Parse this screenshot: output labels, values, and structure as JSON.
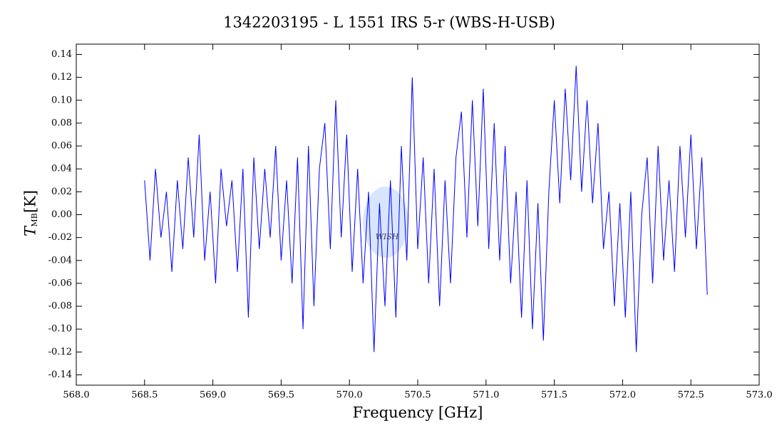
{
  "chart_data": {
    "type": "line",
    "title": "1342203195 - L 1551 IRS 5-r (WBS-H-USB)",
    "x_label": "Frequency [GHz]",
    "y_label": "T",
    "y_label_sub": "MB",
    "y_label_unit": "[K]",
    "watermark": "WISH",
    "xlim": [
      568,
      573
    ],
    "ylim": [
      -0.149,
      0.149
    ],
    "xticks": [
      {
        "value": 568,
        "label": "568.0"
      },
      568.5,
      {
        "value": 569,
        "label": "569.0"
      },
      569.5,
      {
        "value": 570,
        "label": "570.0"
      },
      570.5,
      {
        "value": 571,
        "label": "571.0"
      },
      571.5,
      {
        "value": 572,
        "label": "572.0"
      },
      572.5,
      {
        "value": 573,
        "label": "573.0"
      }
    ],
    "yticks": [
      -0.14,
      -0.12,
      {
        "value": -0.1,
        "label": "-0.10"
      },
      -0.08,
      -0.06,
      -0.04,
      -0.02,
      {
        "value": 0,
        "label": "0.00"
      },
      0.02,
      0.04,
      0.06,
      0.08,
      {
        "value": 0.1,
        "label": "0.10"
      },
      0.12,
      0.14
    ],
    "x": [
      568.5,
      568.54,
      568.58,
      568.62,
      568.66,
      568.7,
      568.74,
      568.78,
      568.82,
      568.86,
      568.9,
      568.94,
      568.98,
      569.02,
      569.06,
      569.1,
      569.14,
      569.18,
      569.22,
      569.26,
      569.3,
      569.34,
      569.38,
      569.42,
      569.46,
      569.5,
      569.54,
      569.58,
      569.62,
      569.66,
      569.7,
      569.74,
      569.78,
      569.82,
      569.86,
      569.9,
      569.94,
      569.98,
      570.02,
      570.06,
      570.1,
      570.14,
      570.18,
      570.22,
      570.26,
      570.3,
      570.34,
      570.38,
      570.42,
      570.46,
      570.5,
      570.54,
      570.58,
      570.62,
      570.66,
      570.7,
      570.74,
      570.78,
      570.82,
      570.86,
      570.9,
      570.94,
      570.98,
      571.02,
      571.06,
      571.1,
      571.14,
      571.18,
      571.22,
      571.26,
      571.3,
      571.34,
      571.38,
      571.42,
      571.46,
      571.5,
      571.54,
      571.58,
      571.62,
      571.66,
      571.7,
      571.74,
      571.78,
      571.82,
      571.86,
      571.9,
      571.94,
      571.98,
      572.02,
      572.06,
      572.1,
      572.14,
      572.18,
      572.22,
      572.26,
      572.3,
      572.34,
      572.38,
      572.42,
      572.46,
      572.5,
      572.54,
      572.58,
      572.62
    ],
    "series": [
      {
        "color": "#0000ff",
        "values": [
          0.03,
          -0.04,
          0.04,
          -0.02,
          0.02,
          -0.05,
          0.03,
          -0.03,
          0.05,
          -0.02,
          0.07,
          -0.04,
          0.02,
          -0.06,
          0.04,
          -0.01,
          0.03,
          -0.05,
          0.04,
          -0.09,
          0.05,
          -0.03,
          0.04,
          -0.02,
          0.06,
          -0.04,
          0.03,
          -0.06,
          0.05,
          -0.1,
          0.06,
          -0.08,
          0.04,
          0.08,
          -0.03,
          0.1,
          -0.02,
          0.07,
          -0.05,
          0.04,
          -0.06,
          0.02,
          -0.12,
          0.01,
          -0.08,
          0.03,
          -0.09,
          0.06,
          -0.04,
          0.12,
          -0.03,
          0.05,
          -0.06,
          0.04,
          -0.08,
          0.03,
          -0.06,
          0.05,
          0.09,
          -0.02,
          0.1,
          -0.01,
          0.11,
          -0.03,
          0.08,
          -0.04,
          0.06,
          -0.06,
          0.02,
          -0.09,
          0.03,
          -0.1,
          0.01,
          -0.11,
          0.02,
          0.1,
          0.01,
          0.11,
          0.03,
          0.13,
          0.02,
          0.1,
          0.01,
          0.08,
          -0.03,
          0.02,
          -0.08,
          0.01,
          -0.09,
          0.02,
          -0.12,
          0,
          0.05,
          -0.06,
          0.06,
          -0.04,
          0.03,
          -0.05,
          0.06,
          -0.02,
          0.07,
          -0.03,
          0.05,
          -0.07
        ]
      }
    ]
  }
}
